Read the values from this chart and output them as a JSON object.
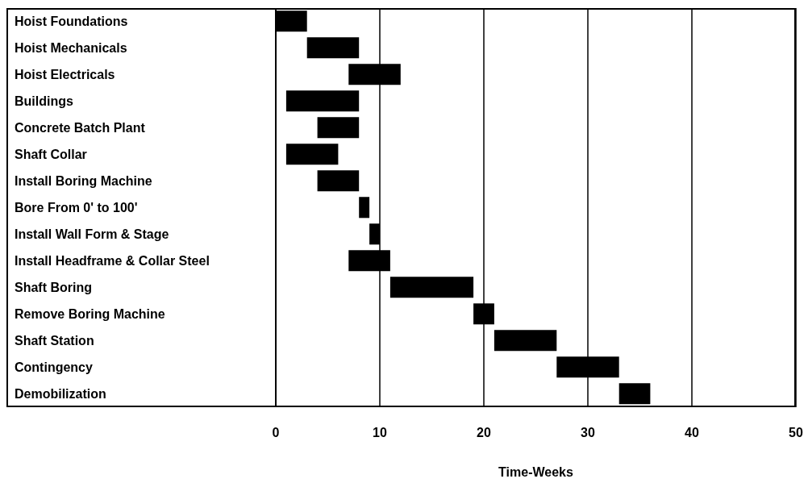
{
  "chart_data": {
    "type": "bar",
    "orientation": "horizontal",
    "xlabel": "Time-Weeks",
    "categories": [
      "Hoist Foundations",
      "Hoist Mechanicals",
      "Hoist Electricals",
      "Buildings",
      "Concrete Batch Plant",
      "Shaft Collar",
      "Install Boring Machine",
      "Bore From 0' to 100'",
      "Install Wall Form & Stage",
      "Install Headframe & Collar Steel",
      "Shaft Boring",
      "Remove Boring Machine",
      "Shaft Station",
      "Contingency",
      "Demobilization"
    ],
    "base": [
      0,
      3,
      7,
      1,
      4,
      1,
      4,
      8,
      9,
      7,
      11,
      19,
      21,
      27,
      33
    ],
    "values": [
      3,
      5,
      5,
      7,
      4,
      5,
      4,
      1,
      1,
      4,
      8,
      2,
      6,
      6,
      3
    ],
    "color": "#000000",
    "xlim": [
      0,
      50
    ],
    "xticks": [
      0,
      10,
      20,
      30,
      40,
      50
    ],
    "grid": "x"
  }
}
